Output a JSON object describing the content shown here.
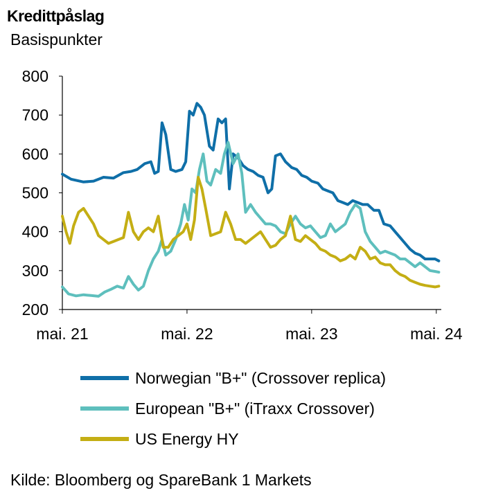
{
  "chart_data": {
    "type": "line",
    "title": "Kredittpåslag",
    "subtitle": "Basispunkter",
    "xlabel": "",
    "ylabel": "",
    "ylim": [
      200,
      800
    ],
    "yticks": [
      200,
      300,
      400,
      500,
      600,
      700,
      800
    ],
    "xlim": [
      2021.33,
      2024.37
    ],
    "xticks": [
      {
        "x": 2021.33,
        "label": "mai. 21"
      },
      {
        "x": 2022.33,
        "label": "mai. 22"
      },
      {
        "x": 2023.33,
        "label": "mai. 23"
      },
      {
        "x": 2024.33,
        "label": "mai. 24"
      }
    ],
    "grid": false,
    "legend_position": "bottom",
    "series": [
      {
        "name": "Norwegian \"B+\" (Crossover replica)",
        "color": "#0f6fa8",
        "points": [
          [
            2021.33,
            548
          ],
          [
            2021.4,
            535
          ],
          [
            2021.5,
            528
          ],
          [
            2021.58,
            530
          ],
          [
            2021.66,
            540
          ],
          [
            2021.74,
            538
          ],
          [
            2021.82,
            552
          ],
          [
            2021.88,
            555
          ],
          [
            2021.93,
            560
          ],
          [
            2021.99,
            575
          ],
          [
            2022.04,
            580
          ],
          [
            2022.07,
            550
          ],
          [
            2022.1,
            555
          ],
          [
            2022.13,
            680
          ],
          [
            2022.16,
            650
          ],
          [
            2022.2,
            560
          ],
          [
            2022.24,
            555
          ],
          [
            2022.29,
            560
          ],
          [
            2022.32,
            580
          ],
          [
            2022.35,
            710
          ],
          [
            2022.38,
            700
          ],
          [
            2022.41,
            730
          ],
          [
            2022.44,
            720
          ],
          [
            2022.47,
            700
          ],
          [
            2022.51,
            620
          ],
          [
            2022.54,
            610
          ],
          [
            2022.58,
            690
          ],
          [
            2022.61,
            680
          ],
          [
            2022.64,
            690
          ],
          [
            2022.67,
            510
          ],
          [
            2022.7,
            600
          ],
          [
            2022.74,
            590
          ],
          [
            2022.78,
            570
          ],
          [
            2022.82,
            560
          ],
          [
            2022.86,
            555
          ],
          [
            2022.9,
            545
          ],
          [
            2022.94,
            540
          ],
          [
            2022.98,
            500
          ],
          [
            2023.01,
            510
          ],
          [
            2023.04,
            595
          ],
          [
            2023.08,
            600
          ],
          [
            2023.12,
            580
          ],
          [
            2023.17,
            565
          ],
          [
            2023.21,
            560
          ],
          [
            2023.25,
            545
          ],
          [
            2023.29,
            540
          ],
          [
            2023.33,
            530
          ],
          [
            2023.38,
            525
          ],
          [
            2023.42,
            510
          ],
          [
            2023.46,
            505
          ],
          [
            2023.5,
            500
          ],
          [
            2023.54,
            480
          ],
          [
            2023.58,
            475
          ],
          [
            2023.62,
            470
          ],
          [
            2023.66,
            480
          ],
          [
            2023.7,
            475
          ],
          [
            2023.74,
            470
          ],
          [
            2023.78,
            470
          ],
          [
            2023.83,
            455
          ],
          [
            2023.87,
            455
          ],
          [
            2023.91,
            420
          ],
          [
            2023.96,
            415
          ],
          [
            2024.0,
            400
          ],
          [
            2024.04,
            385
          ],
          [
            2024.08,
            370
          ],
          [
            2024.12,
            355
          ],
          [
            2024.16,
            345
          ],
          [
            2024.2,
            340
          ],
          [
            2024.24,
            330
          ],
          [
            2024.28,
            330
          ],
          [
            2024.32,
            330
          ],
          [
            2024.35,
            325
          ]
        ]
      },
      {
        "name": "European \"B+\" (iTraxx Crossover)",
        "color": "#5ebfbd",
        "points": [
          [
            2021.33,
            258
          ],
          [
            2021.38,
            240
          ],
          [
            2021.44,
            235
          ],
          [
            2021.5,
            238
          ],
          [
            2021.56,
            236
          ],
          [
            2021.62,
            234
          ],
          [
            2021.67,
            245
          ],
          [
            2021.72,
            252
          ],
          [
            2021.77,
            260
          ],
          [
            2021.82,
            255
          ],
          [
            2021.86,
            285
          ],
          [
            2021.9,
            265
          ],
          [
            2021.94,
            250
          ],
          [
            2021.98,
            260
          ],
          [
            2022.02,
            300
          ],
          [
            2022.06,
            330
          ],
          [
            2022.1,
            350
          ],
          [
            2022.13,
            380
          ],
          [
            2022.16,
            340
          ],
          [
            2022.2,
            350
          ],
          [
            2022.24,
            380
          ],
          [
            2022.28,
            420
          ],
          [
            2022.31,
            470
          ],
          [
            2022.34,
            430
          ],
          [
            2022.37,
            510
          ],
          [
            2022.4,
            500
          ],
          [
            2022.43,
            560
          ],
          [
            2022.46,
            600
          ],
          [
            2022.49,
            530
          ],
          [
            2022.52,
            520
          ],
          [
            2022.56,
            560
          ],
          [
            2022.6,
            550
          ],
          [
            2022.63,
            600
          ],
          [
            2022.66,
            630
          ],
          [
            2022.7,
            575
          ],
          [
            2022.74,
            600
          ],
          [
            2022.77,
            550
          ],
          [
            2022.8,
            450
          ],
          [
            2022.84,
            470
          ],
          [
            2022.88,
            450
          ],
          [
            2022.92,
            435
          ],
          [
            2022.96,
            420
          ],
          [
            2023.0,
            420
          ],
          [
            2023.04,
            415
          ],
          [
            2023.08,
            400
          ],
          [
            2023.12,
            395
          ],
          [
            2023.16,
            420
          ],
          [
            2023.2,
            440
          ],
          [
            2023.24,
            420
          ],
          [
            2023.28,
            410
          ],
          [
            2023.32,
            415
          ],
          [
            2023.36,
            400
          ],
          [
            2023.4,
            385
          ],
          [
            2023.44,
            390
          ],
          [
            2023.48,
            420
          ],
          [
            2023.52,
            400
          ],
          [
            2023.56,
            410
          ],
          [
            2023.6,
            420
          ],
          [
            2023.64,
            450
          ],
          [
            2023.68,
            470
          ],
          [
            2023.72,
            460
          ],
          [
            2023.76,
            400
          ],
          [
            2023.8,
            375
          ],
          [
            2023.84,
            360
          ],
          [
            2023.88,
            345
          ],
          [
            2023.92,
            350
          ],
          [
            2023.96,
            345
          ],
          [
            2024.0,
            340
          ],
          [
            2024.04,
            330
          ],
          [
            2024.08,
            330
          ],
          [
            2024.12,
            320
          ],
          [
            2024.16,
            310
          ],
          [
            2024.2,
            320
          ],
          [
            2024.24,
            310
          ],
          [
            2024.28,
            300
          ],
          [
            2024.32,
            298
          ],
          [
            2024.35,
            296
          ]
        ]
      },
      {
        "name": "US Energy HY",
        "color": "#c4ae14",
        "points": [
          [
            2021.33,
            440
          ],
          [
            2021.36,
            400
          ],
          [
            2021.39,
            370
          ],
          [
            2021.42,
            415
          ],
          [
            2021.46,
            450
          ],
          [
            2021.5,
            460
          ],
          [
            2021.54,
            440
          ],
          [
            2021.58,
            420
          ],
          [
            2021.62,
            390
          ],
          [
            2021.66,
            380
          ],
          [
            2021.7,
            370
          ],
          [
            2021.74,
            375
          ],
          [
            2021.78,
            380
          ],
          [
            2021.82,
            385
          ],
          [
            2021.86,
            450
          ],
          [
            2021.9,
            400
          ],
          [
            2021.94,
            380
          ],
          [
            2021.98,
            400
          ],
          [
            2022.02,
            410
          ],
          [
            2022.06,
            400
          ],
          [
            2022.1,
            440
          ],
          [
            2022.14,
            360
          ],
          [
            2022.18,
            360
          ],
          [
            2022.22,
            380
          ],
          [
            2022.26,
            390
          ],
          [
            2022.3,
            400
          ],
          [
            2022.33,
            420
          ],
          [
            2022.36,
            380
          ],
          [
            2022.39,
            430
          ],
          [
            2022.42,
            540
          ],
          [
            2022.45,
            510
          ],
          [
            2022.48,
            460
          ],
          [
            2022.52,
            390
          ],
          [
            2022.56,
            395
          ],
          [
            2022.6,
            400
          ],
          [
            2022.64,
            450
          ],
          [
            2022.68,
            420
          ],
          [
            2022.72,
            380
          ],
          [
            2022.76,
            380
          ],
          [
            2022.8,
            370
          ],
          [
            2022.84,
            380
          ],
          [
            2022.88,
            390
          ],
          [
            2022.92,
            400
          ],
          [
            2022.96,
            380
          ],
          [
            2023.0,
            360
          ],
          [
            2023.04,
            365
          ],
          [
            2023.08,
            380
          ],
          [
            2023.12,
            390
          ],
          [
            2023.16,
            440
          ],
          [
            2023.2,
            380
          ],
          [
            2023.24,
            375
          ],
          [
            2023.28,
            390
          ],
          [
            2023.32,
            380
          ],
          [
            2023.36,
            370
          ],
          [
            2023.4,
            355
          ],
          [
            2023.44,
            350
          ],
          [
            2023.48,
            340
          ],
          [
            2023.52,
            335
          ],
          [
            2023.56,
            325
          ],
          [
            2023.6,
            330
          ],
          [
            2023.64,
            340
          ],
          [
            2023.68,
            330
          ],
          [
            2023.72,
            360
          ],
          [
            2023.76,
            350
          ],
          [
            2023.8,
            330
          ],
          [
            2023.84,
            335
          ],
          [
            2023.88,
            320
          ],
          [
            2023.92,
            315
          ],
          [
            2023.96,
            315
          ],
          [
            2024.0,
            300
          ],
          [
            2024.04,
            290
          ],
          [
            2024.08,
            285
          ],
          [
            2024.12,
            275
          ],
          [
            2024.16,
            270
          ],
          [
            2024.2,
            265
          ],
          [
            2024.24,
            262
          ],
          [
            2024.28,
            260
          ],
          [
            2024.32,
            258
          ],
          [
            2024.35,
            260
          ]
        ]
      }
    ]
  },
  "source": "Kilde: Bloomberg og SpareBank 1 Markets"
}
